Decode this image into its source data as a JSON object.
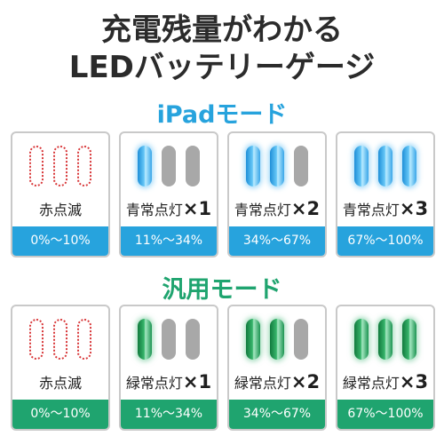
{
  "headline": {
    "line1": "充電残量がわかる",
    "line2": "LEDバッテリーゲージ"
  },
  "colors": {
    "headline": "#2b2b2b",
    "ipad_accent": "#27a3dd",
    "general_accent": "#1fa46f",
    "blink_red": "#d8383a",
    "led_off": "#a8a8a8"
  },
  "sections": [
    {
      "title": "iPadモード",
      "cards": [
        {
          "leds": [
            "red-blink",
            "red-blink",
            "red-blink"
          ],
          "label": "赤点滅",
          "times": "",
          "range": "0%〜10%"
        },
        {
          "leds": [
            "blue",
            "off",
            "off"
          ],
          "label": "青常点灯",
          "times": "×1",
          "range": "11%〜34%"
        },
        {
          "leds": [
            "blue",
            "blue",
            "off"
          ],
          "label": "青常点灯",
          "times": "×2",
          "range": "34%〜67%"
        },
        {
          "leds": [
            "blue",
            "blue",
            "blue"
          ],
          "label": "青常点灯",
          "times": "×3",
          "range": "67%〜100%"
        }
      ]
    },
    {
      "title": "汎用モード",
      "cards": [
        {
          "leds": [
            "red-blink",
            "red-blink",
            "red-blink"
          ],
          "label": "赤点滅",
          "times": "",
          "range": "0%〜10%"
        },
        {
          "leds": [
            "green",
            "off",
            "off"
          ],
          "label": "緑常点灯",
          "times": "×1",
          "range": "11%〜34%"
        },
        {
          "leds": [
            "green",
            "green",
            "off"
          ],
          "label": "緑常点灯",
          "times": "×2",
          "range": "34%〜67%"
        },
        {
          "leds": [
            "green",
            "green",
            "green"
          ],
          "label": "緑常点灯",
          "times": "×3",
          "range": "67%〜100%"
        }
      ]
    }
  ]
}
